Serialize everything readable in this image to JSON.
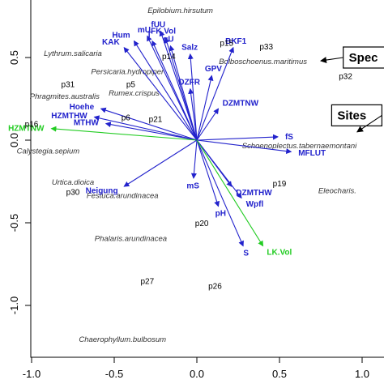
{
  "chart_data": {
    "type": "scatter",
    "title": "",
    "xlabel": "",
    "ylabel": "",
    "xlim": [
      -1.05,
      1.0
    ],
    "ylim": [
      -1.3,
      0.85
    ],
    "x_ticks": [
      "-1.0",
      "-0.5",
      "0.0",
      "0.5",
      "1.0"
    ],
    "y_ticks": [
      "-1.0",
      "-0.5",
      "0.0",
      "0.5"
    ],
    "grid": false,
    "colors": {
      "arrow": "#2222cc",
      "highlight": "#22cc22",
      "text": "#000000"
    },
    "callouts": [
      {
        "text": "Spec",
        "x": 0.92,
        "y": 0.5,
        "arrow_to": [
          0.75,
          0.48
        ]
      },
      {
        "text": "Sites",
        "x": 0.85,
        "y": 0.15,
        "arrow_to": [
          0.97,
          0.05
        ]
      }
    ],
    "sites": [
      {
        "label": "p15",
        "x": 0.18,
        "y": 0.57
      },
      {
        "label": "p33",
        "x": 0.42,
        "y": 0.55
      },
      {
        "label": "p14",
        "x": -0.17,
        "y": 0.49
      },
      {
        "label": "p5",
        "x": -0.4,
        "y": 0.32
      },
      {
        "label": "p31",
        "x": -0.78,
        "y": 0.32
      },
      {
        "label": "p32",
        "x": 0.9,
        "y": 0.37
      },
      {
        "label": "p21",
        "x": -0.25,
        "y": 0.11
      },
      {
        "label": "p6",
        "x": -0.43,
        "y": 0.12
      },
      {
        "label": "p16",
        "x": -1.0,
        "y": 0.08
      },
      {
        "label": "p19",
        "x": 0.5,
        "y": -0.28
      },
      {
        "label": "p30",
        "x": -0.75,
        "y": -0.33
      },
      {
        "label": "p20",
        "x": 0.03,
        "y": -0.52
      },
      {
        "label": "p27",
        "x": -0.3,
        "y": -0.87
      },
      {
        "label": "p26",
        "x": 0.11,
        "y": -0.9
      }
    ],
    "species": [
      {
        "label": "Epilobium.hirsutum",
        "x": -0.1,
        "y": 0.77
      },
      {
        "label": "Lythrum.salicaria",
        "x": -0.75,
        "y": 0.51
      },
      {
        "label": "Bolboschoenus.maritimus",
        "x": 0.4,
        "y": 0.46
      },
      {
        "label": "Persicaria.hydropiper",
        "x": -0.42,
        "y": 0.4
      },
      {
        "label": "Rumex.crispus",
        "x": -0.38,
        "y": 0.27
      },
      {
        "label": "Phragmites.australis",
        "x": -0.8,
        "y": 0.25
      },
      {
        "label": "Calystegia.sepium",
        "x": -0.9,
        "y": -0.08
      },
      {
        "label": "Schoenoplectus.tabernaemontani",
        "x": 0.62,
        "y": -0.05
      },
      {
        "label": "Eleocharis.",
        "x": 0.85,
        "y": -0.32
      },
      {
        "label": "Festuca.arundinacea",
        "x": -0.45,
        "y": -0.35
      },
      {
        "label": "Urtica.dioica",
        "x": -0.75,
        "y": -0.27
      },
      {
        "label": "Phalaris.arundinacea",
        "x": -0.4,
        "y": -0.61
      },
      {
        "label": "Chaerophyllum.bulbosum",
        "x": -0.45,
        "y": -1.22
      }
    ],
    "arrows": [
      {
        "label": "mU",
        "x": -0.3,
        "y": 0.63,
        "color": "blue"
      },
      {
        "label": "fUU",
        "x": -0.22,
        "y": 0.66,
        "color": "blue"
      },
      {
        "label": "Hum",
        "x": -0.38,
        "y": 0.6,
        "color": "blue"
      },
      {
        "label": "T",
        "x": -0.27,
        "y": 0.6,
        "color": "blue"
      },
      {
        "label": "FK.Vol",
        "x": -0.19,
        "y": 0.62,
        "color": "blue"
      },
      {
        "label": "gU",
        "x": -0.16,
        "y": 0.57,
        "color": "blue"
      },
      {
        "label": "KAK",
        "x": -0.44,
        "y": 0.56,
        "color": "blue"
      },
      {
        "label": "BKF1",
        "x": 0.22,
        "y": 0.56,
        "color": "blue"
      },
      {
        "label": "Salz",
        "x": -0.04,
        "y": 0.52,
        "color": "blue"
      },
      {
        "label": "GPV",
        "x": 0.09,
        "y": 0.39,
        "color": "blue"
      },
      {
        "label": "DZFR",
        "x": -0.04,
        "y": 0.31,
        "color": "blue"
      },
      {
        "label": "DZMTNW",
        "x": 0.13,
        "y": 0.19,
        "color": "blue"
      },
      {
        "label": "Hoehe",
        "x": -0.58,
        "y": 0.19,
        "color": "blue"
      },
      {
        "label": "HZMTHW",
        "x": -0.62,
        "y": 0.14,
        "color": "blue"
      },
      {
        "label": "MTHW",
        "x": -0.55,
        "y": 0.1,
        "color": "blue"
      },
      {
        "label": "HZMTNW",
        "x": -0.88,
        "y": 0.07,
        "color": "green"
      },
      {
        "label": "fS",
        "x": 0.49,
        "y": 0.02,
        "color": "blue"
      },
      {
        "label": "MFLUT",
        "x": 0.57,
        "y": -0.07,
        "color": "blue"
      },
      {
        "label": "Neigung",
        "x": -0.44,
        "y": -0.28,
        "color": "blue"
      },
      {
        "label": "mS",
        "x": -0.02,
        "y": -0.23,
        "color": "blue"
      },
      {
        "label": "DZMTHW",
        "x": 0.21,
        "y": -0.28,
        "color": "blue"
      },
      {
        "label": "Wpfl",
        "x": 0.27,
        "y": -0.35,
        "color": "blue"
      },
      {
        "label": "pH",
        "x": 0.13,
        "y": -0.4,
        "color": "blue"
      },
      {
        "label": "S",
        "x": 0.28,
        "y": -0.64,
        "color": "blue"
      },
      {
        "label": "LK.Vol",
        "x": 0.4,
        "y": -0.64,
        "color": "green"
      }
    ]
  }
}
